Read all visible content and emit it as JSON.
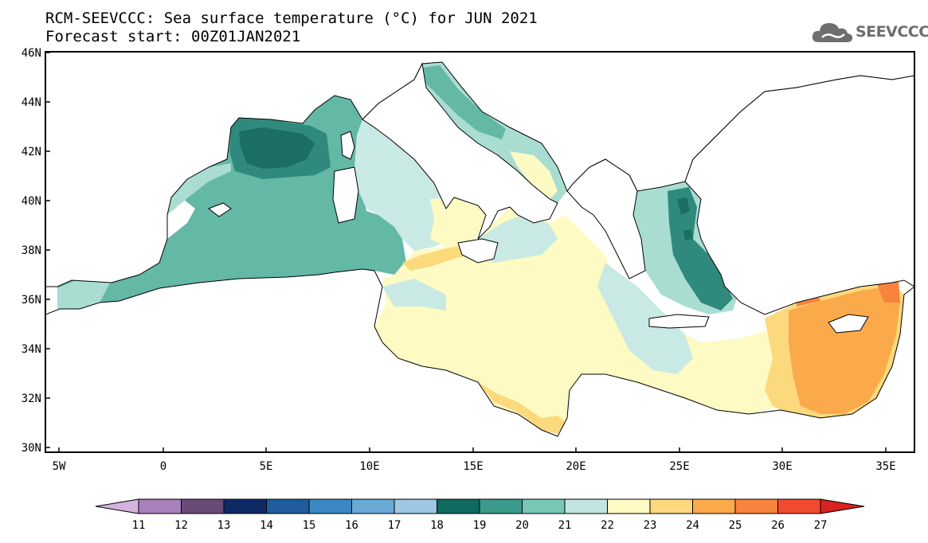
{
  "title": {
    "line1": "RCM-SEEVCCC: Sea surface temperature (°C) for JUN 2021",
    "line2": "Forecast start: 00Z01JAN2021"
  },
  "logo": {
    "text": "SEEVCCC",
    "icon": "cloud-icon"
  },
  "map": {
    "lat_labels": [
      "46N",
      "44N",
      "42N",
      "40N",
      "38N",
      "36N",
      "34N",
      "32N",
      "30N"
    ],
    "lon_labels": [
      "5W",
      "0",
      "5E",
      "10E",
      "15E",
      "20E",
      "25E",
      "30E",
      "35E"
    ]
  },
  "colorbar": {
    "labels": [
      "11",
      "12",
      "13",
      "14",
      "15",
      "16",
      "17",
      "18",
      "19",
      "20",
      "21",
      "22",
      "23",
      "24",
      "25",
      "26",
      "27"
    ],
    "colors": [
      "#d5b3e0",
      "#a880be",
      "#6a4a76",
      "#0e2a66",
      "#1f5c9c",
      "#3b87c1",
      "#69a9d6",
      "#9dc7e3",
      "#0f6a5f",
      "#3a9a8c",
      "#77c7b5",
      "#c2e6df",
      "#fdfbc3",
      "#fcd97c",
      "#fbaa4b",
      "#f7833c",
      "#f04b2f",
      "#d7221f"
    ]
  },
  "palette": {
    "c20": "#63b8a6",
    "c19": "#2f8a7d",
    "c18": "#1b6e63",
    "c21": "#a9ddd2",
    "c22": "#c9eae4",
    "c23": "#fdfbc3",
    "c24": "#fcd97c",
    "c25": "#fbaa4b",
    "c26": "#f7833c"
  }
}
